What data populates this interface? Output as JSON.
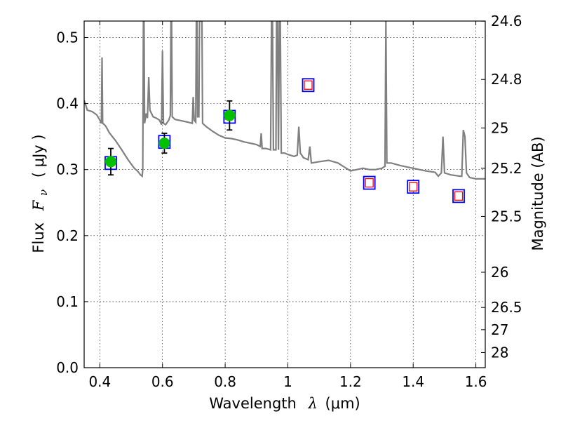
{
  "chart_data": {
    "type": "scatter",
    "xlabel_text": "Wavelength",
    "xlabel_symbol": "λ",
    "xlabel_unit": "(μm)",
    "ylabel_text": "Flux",
    "ylabel_symbol": "F",
    "ylabel_subscript": "ν",
    "ylabel_unit": "( μJy )",
    "y2label": "Magnitude (AB)",
    "xlim": [
      0.35,
      1.63
    ],
    "ylim": [
      0.0,
      0.525
    ],
    "xticks": [
      0.4,
      0.6,
      0.8,
      1.0,
      1.2,
      1.4,
      1.6
    ],
    "xtick_labels": [
      "0.4",
      "0.6",
      "0.8",
      "1",
      "1.2",
      "1.4",
      "1.6"
    ],
    "yticks": [
      0.0,
      0.1,
      0.2,
      0.3,
      0.4,
      0.5
    ],
    "ytick_labels": [
      "0.0",
      "0.1",
      "0.2",
      "0.3",
      "0.4",
      "0.5"
    ],
    "y2ticks": [
      {
        "mag": 24.6,
        "label": "24.6"
      },
      {
        "mag": 24.8,
        "label": "24.8"
      },
      {
        "mag": 25.0,
        "label": "25"
      },
      {
        "mag": 25.2,
        "label": "25.2"
      },
      {
        "mag": 25.5,
        "label": "25.5"
      },
      {
        "mag": 26.0,
        "label": "26"
      },
      {
        "mag": 26.5,
        "label": "26.5"
      },
      {
        "mag": 27.0,
        "label": "27"
      },
      {
        "mag": 28.0,
        "label": "28"
      }
    ],
    "grid": true,
    "colors": {
      "spectrum": "#808080",
      "measured": "#00c000",
      "model_box": "#0000ff",
      "upper_limit": "#ff0000",
      "errorbar": "#000000"
    },
    "spectrum": [
      [
        0.35,
        0.405
      ],
      [
        0.36,
        0.39
      ],
      [
        0.375,
        0.388
      ],
      [
        0.39,
        0.383
      ],
      [
        0.4,
        0.375
      ],
      [
        0.405,
        0.37
      ],
      [
        0.407,
        0.47
      ],
      [
        0.409,
        0.37
      ],
      [
        0.415,
        0.368
      ],
      [
        0.42,
        0.365
      ],
      [
        0.43,
        0.356
      ],
      [
        0.44,
        0.35
      ],
      [
        0.45,
        0.344
      ],
      [
        0.47,
        0.33
      ],
      [
        0.49,
        0.315
      ],
      [
        0.51,
        0.302
      ],
      [
        0.52,
        0.298
      ],
      [
        0.53,
        0.292
      ],
      [
        0.535,
        0.29
      ],
      [
        0.537,
        0.3
      ],
      [
        0.539,
        0.525
      ],
      [
        0.541,
        0.525
      ],
      [
        0.543,
        0.37
      ],
      [
        0.548,
        0.385
      ],
      [
        0.552,
        0.378
      ],
      [
        0.556,
        0.44
      ],
      [
        0.56,
        0.39
      ],
      [
        0.57,
        0.38
      ],
      [
        0.58,
        0.378
      ],
      [
        0.59,
        0.375
      ],
      [
        0.597,
        0.368
      ],
      [
        0.6,
        0.48
      ],
      [
        0.603,
        0.37
      ],
      [
        0.61,
        0.368
      ],
      [
        0.62,
        0.375
      ],
      [
        0.625,
        0.382
      ],
      [
        0.627,
        0.525
      ],
      [
        0.629,
        0.525
      ],
      [
        0.631,
        0.38
      ],
      [
        0.64,
        0.376
      ],
      [
        0.66,
        0.374
      ],
      [
        0.68,
        0.372
      ],
      [
        0.695,
        0.37
      ],
      [
        0.698,
        0.41
      ],
      [
        0.701,
        0.375
      ],
      [
        0.706,
        0.372
      ],
      [
        0.708,
        0.525
      ],
      [
        0.71,
        0.525
      ],
      [
        0.712,
        0.38
      ],
      [
        0.716,
        0.38
      ],
      [
        0.718,
        0.525
      ],
      [
        0.726,
        0.525
      ],
      [
        0.728,
        0.37
      ],
      [
        0.74,
        0.365
      ],
      [
        0.76,
        0.358
      ],
      [
        0.78,
        0.352
      ],
      [
        0.8,
        0.348
      ],
      [
        0.82,
        0.347
      ],
      [
        0.84,
        0.345
      ],
      [
        0.86,
        0.342
      ],
      [
        0.88,
        0.34
      ],
      [
        0.9,
        0.338
      ],
      [
        0.912,
        0.335
      ],
      [
        0.915,
        0.355
      ],
      [
        0.918,
        0.332
      ],
      [
        0.93,
        0.332
      ],
      [
        0.945,
        0.33
      ],
      [
        0.948,
        0.525
      ],
      [
        0.951,
        0.525
      ],
      [
        0.954,
        0.33
      ],
      [
        0.962,
        0.33
      ],
      [
        0.964,
        0.525
      ],
      [
        0.967,
        0.525
      ],
      [
        0.97,
        0.33
      ],
      [
        0.973,
        0.525
      ],
      [
        0.976,
        0.525
      ],
      [
        0.979,
        0.325
      ],
      [
        0.99,
        0.325
      ],
      [
        1.0,
        0.323
      ],
      [
        1.02,
        0.32
      ],
      [
        1.03,
        0.322
      ],
      [
        1.035,
        0.365
      ],
      [
        1.04,
        0.325
      ],
      [
        1.05,
        0.318
      ],
      [
        1.065,
        0.315
      ],
      [
        1.07,
        0.335
      ],
      [
        1.075,
        0.31
      ],
      [
        1.1,
        0.312
      ],
      [
        1.13,
        0.314
      ],
      [
        1.16,
        0.31
      ],
      [
        1.18,
        0.304
      ],
      [
        1.2,
        0.298
      ],
      [
        1.22,
        0.3
      ],
      [
        1.24,
        0.302
      ],
      [
        1.26,
        0.3
      ],
      [
        1.28,
        0.3
      ],
      [
        1.3,
        0.302
      ],
      [
        1.31,
        0.305
      ],
      [
        1.313,
        0.525
      ],
      [
        1.316,
        0.31
      ],
      [
        1.33,
        0.31
      ],
      [
        1.36,
        0.306
      ],
      [
        1.4,
        0.302
      ],
      [
        1.44,
        0.298
      ],
      [
        1.47,
        0.296
      ],
      [
        1.48,
        0.29
      ],
      [
        1.49,
        0.295
      ],
      [
        1.495,
        0.35
      ],
      [
        1.5,
        0.295
      ],
      [
        1.52,
        0.292
      ],
      [
        1.55,
        0.29
      ],
      [
        1.555,
        0.29
      ],
      [
        1.56,
        0.36
      ],
      [
        1.565,
        0.35
      ],
      [
        1.57,
        0.295
      ],
      [
        1.58,
        0.288
      ],
      [
        1.6,
        0.286
      ],
      [
        1.63,
        0.286
      ]
    ],
    "measured": [
      {
        "x": 0.435,
        "y": 0.312,
        "err": 0.02
      },
      {
        "x": 0.606,
        "y": 0.34,
        "err": 0.015
      },
      {
        "x": 0.814,
        "y": 0.382,
        "err": 0.022
      }
    ],
    "model_points": [
      {
        "x": 0.435,
        "y": 0.31
      },
      {
        "x": 0.606,
        "y": 0.342
      },
      {
        "x": 0.814,
        "y": 0.38
      },
      {
        "x": 1.065,
        "y": 0.428
      },
      {
        "x": 1.26,
        "y": 0.28
      },
      {
        "x": 1.4,
        "y": 0.274
      },
      {
        "x": 1.545,
        "y": 0.26
      }
    ],
    "upper_limits": [
      {
        "x": 1.065,
        "y": 0.428
      },
      {
        "x": 1.26,
        "y": 0.28
      },
      {
        "x": 1.4,
        "y": 0.274
      },
      {
        "x": 1.545,
        "y": 0.26
      }
    ]
  }
}
